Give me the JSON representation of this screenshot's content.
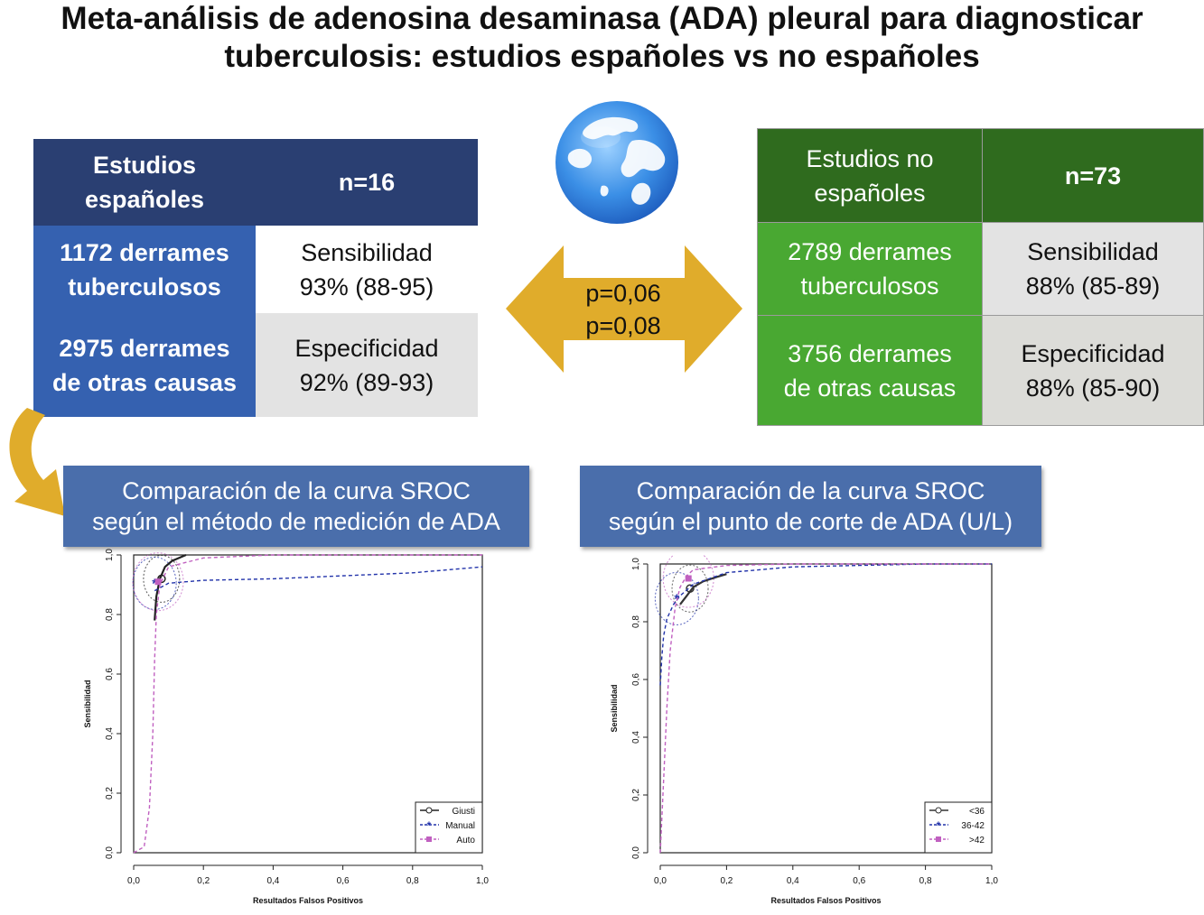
{
  "title": {
    "line1": "Meta-análisis de adenosina desaminasa (ADA) pleural para diagnosticar",
    "line2": "tuberculosis: estudios españoles vs no españoles"
  },
  "spanish": {
    "header_label_1": "Estudios",
    "header_label_2": "españoles",
    "n": "n=16",
    "tb_1": "1172 derrames",
    "tb_2": "tuberculosos",
    "sens_label": "Sensibilidad",
    "sens_value": "93% (88-95)",
    "other_1": "2975 derrames",
    "other_2": "de otras causas",
    "spec_label": "Especificidad",
    "spec_value": "92% (89-93)",
    "color": "#2a3f72"
  },
  "non_spanish": {
    "header_label_1": "Estudios no",
    "header_label_2": "españoles",
    "n": "n=73",
    "tb_1": "2789 derrames",
    "tb_2": "tuberculosos",
    "sens_label": "Sensibilidad",
    "sens_value": "88% (85-89)",
    "other_1": "3756 derrames",
    "other_2": "de otras causas",
    "spec_label": "Especificidad",
    "spec_value": "88% (85-90)",
    "color": "#2f6b1e"
  },
  "comparison": {
    "p_sens": "p=0,06",
    "p_spec": "p=0,08",
    "arrow_color": "#e0ac2b"
  },
  "globe_icon": "globe-icon",
  "banner_left": {
    "line1": "Comparación de la curva SROC",
    "line2": "según el método de medición de ADA"
  },
  "banner_right": {
    "line1": "Comparación de la curva SROC",
    "line2": "según el punto de corte de ADA (U/L)"
  },
  "chart_data": [
    {
      "type": "line",
      "xlabel": "Resultados Falsos Positivos",
      "ylabel": "Sensibilidad",
      "xlim": [
        0,
        1
      ],
      "ylim": [
        0,
        1
      ],
      "xticks": [
        "0,0",
        "0,2",
        "0,4",
        "0,6",
        "0,8",
        "1,0"
      ],
      "yticks": [
        "0,0",
        "0,2",
        "0,4",
        "0,6",
        "0,8",
        "1,0"
      ],
      "legend_position": "bottom-right",
      "series": [
        {
          "name": "Giusti",
          "color": "#222222",
          "dash": "solid",
          "marker": "circle",
          "x": [
            0.06,
            0.065,
            0.075,
            0.09,
            0.11,
            0.15
          ],
          "y": [
            0.78,
            0.86,
            0.92,
            0.96,
            0.98,
            1.0
          ],
          "point": [
            0.08,
            0.92
          ]
        },
        {
          "name": "Manual",
          "color": "#2233aa",
          "dash": "dashed",
          "marker": "star",
          "x": [
            0.06,
            0.1,
            0.2,
            0.4,
            0.6,
            0.8,
            1.0
          ],
          "y": [
            0.88,
            0.905,
            0.915,
            0.92,
            0.93,
            0.94,
            0.96
          ],
          "point": [
            0.06,
            0.905
          ]
        },
        {
          "name": "Auto",
          "color": "#c060c0",
          "dash": "dashed",
          "marker": "square",
          "x": [
            0.0,
            0.03,
            0.045,
            0.055,
            0.06,
            0.065,
            0.075,
            0.1,
            0.2,
            0.4,
            0.6,
            0.8,
            1.0
          ],
          "y": [
            0.0,
            0.02,
            0.15,
            0.4,
            0.65,
            0.8,
            0.9,
            0.96,
            0.99,
            1.0,
            1.0,
            1.0,
            1.0
          ],
          "point": [
            0.07,
            0.91
          ]
        }
      ]
    },
    {
      "type": "line",
      "xlabel": "Resultados Falsos Positivos",
      "ylabel": "Sensibilidad",
      "xlim": [
        0,
        1
      ],
      "ylim": [
        0,
        1
      ],
      "xticks": [
        "0,0",
        "0,2",
        "0,4",
        "0,6",
        "0,8",
        "1,0"
      ],
      "yticks": [
        "0,0",
        "0,2",
        "0,4",
        "0,6",
        "0,8",
        "1,0"
      ],
      "legend_position": "bottom-right",
      "series": [
        {
          "name": "<36",
          "color": "#333333",
          "dash": "solid",
          "marker": "circle",
          "x": [
            0.06,
            0.08,
            0.1,
            0.13,
            0.17,
            0.2
          ],
          "y": [
            0.86,
            0.89,
            0.92,
            0.94,
            0.955,
            0.965
          ],
          "point": [
            0.09,
            0.915
          ]
        },
        {
          "name": "36-42",
          "color": "#2233aa",
          "dash": "dashed",
          "marker": "star",
          "x": [
            0.0,
            0.005,
            0.01,
            0.02,
            0.04,
            0.06,
            0.1,
            0.2,
            0.4,
            0.6,
            0.8,
            1.0
          ],
          "y": [
            0.58,
            0.68,
            0.75,
            0.81,
            0.86,
            0.89,
            0.93,
            0.97,
            0.99,
            0.995,
            1.0,
            1.0
          ],
          "point": [
            0.05,
            0.88
          ]
        },
        {
          "name": ">42",
          "color": "#c060c0",
          "dash": "dashed",
          "marker": "square",
          "x": [
            0.0,
            0.01,
            0.02,
            0.03,
            0.045,
            0.06,
            0.08,
            0.1,
            0.2,
            0.4,
            0.6,
            0.8,
            1.0
          ],
          "y": [
            0.0,
            0.25,
            0.5,
            0.7,
            0.85,
            0.92,
            0.96,
            0.98,
            0.995,
            1.0,
            1.0,
            1.0,
            1.0
          ],
          "point": [
            0.085,
            0.95
          ]
        }
      ]
    }
  ]
}
